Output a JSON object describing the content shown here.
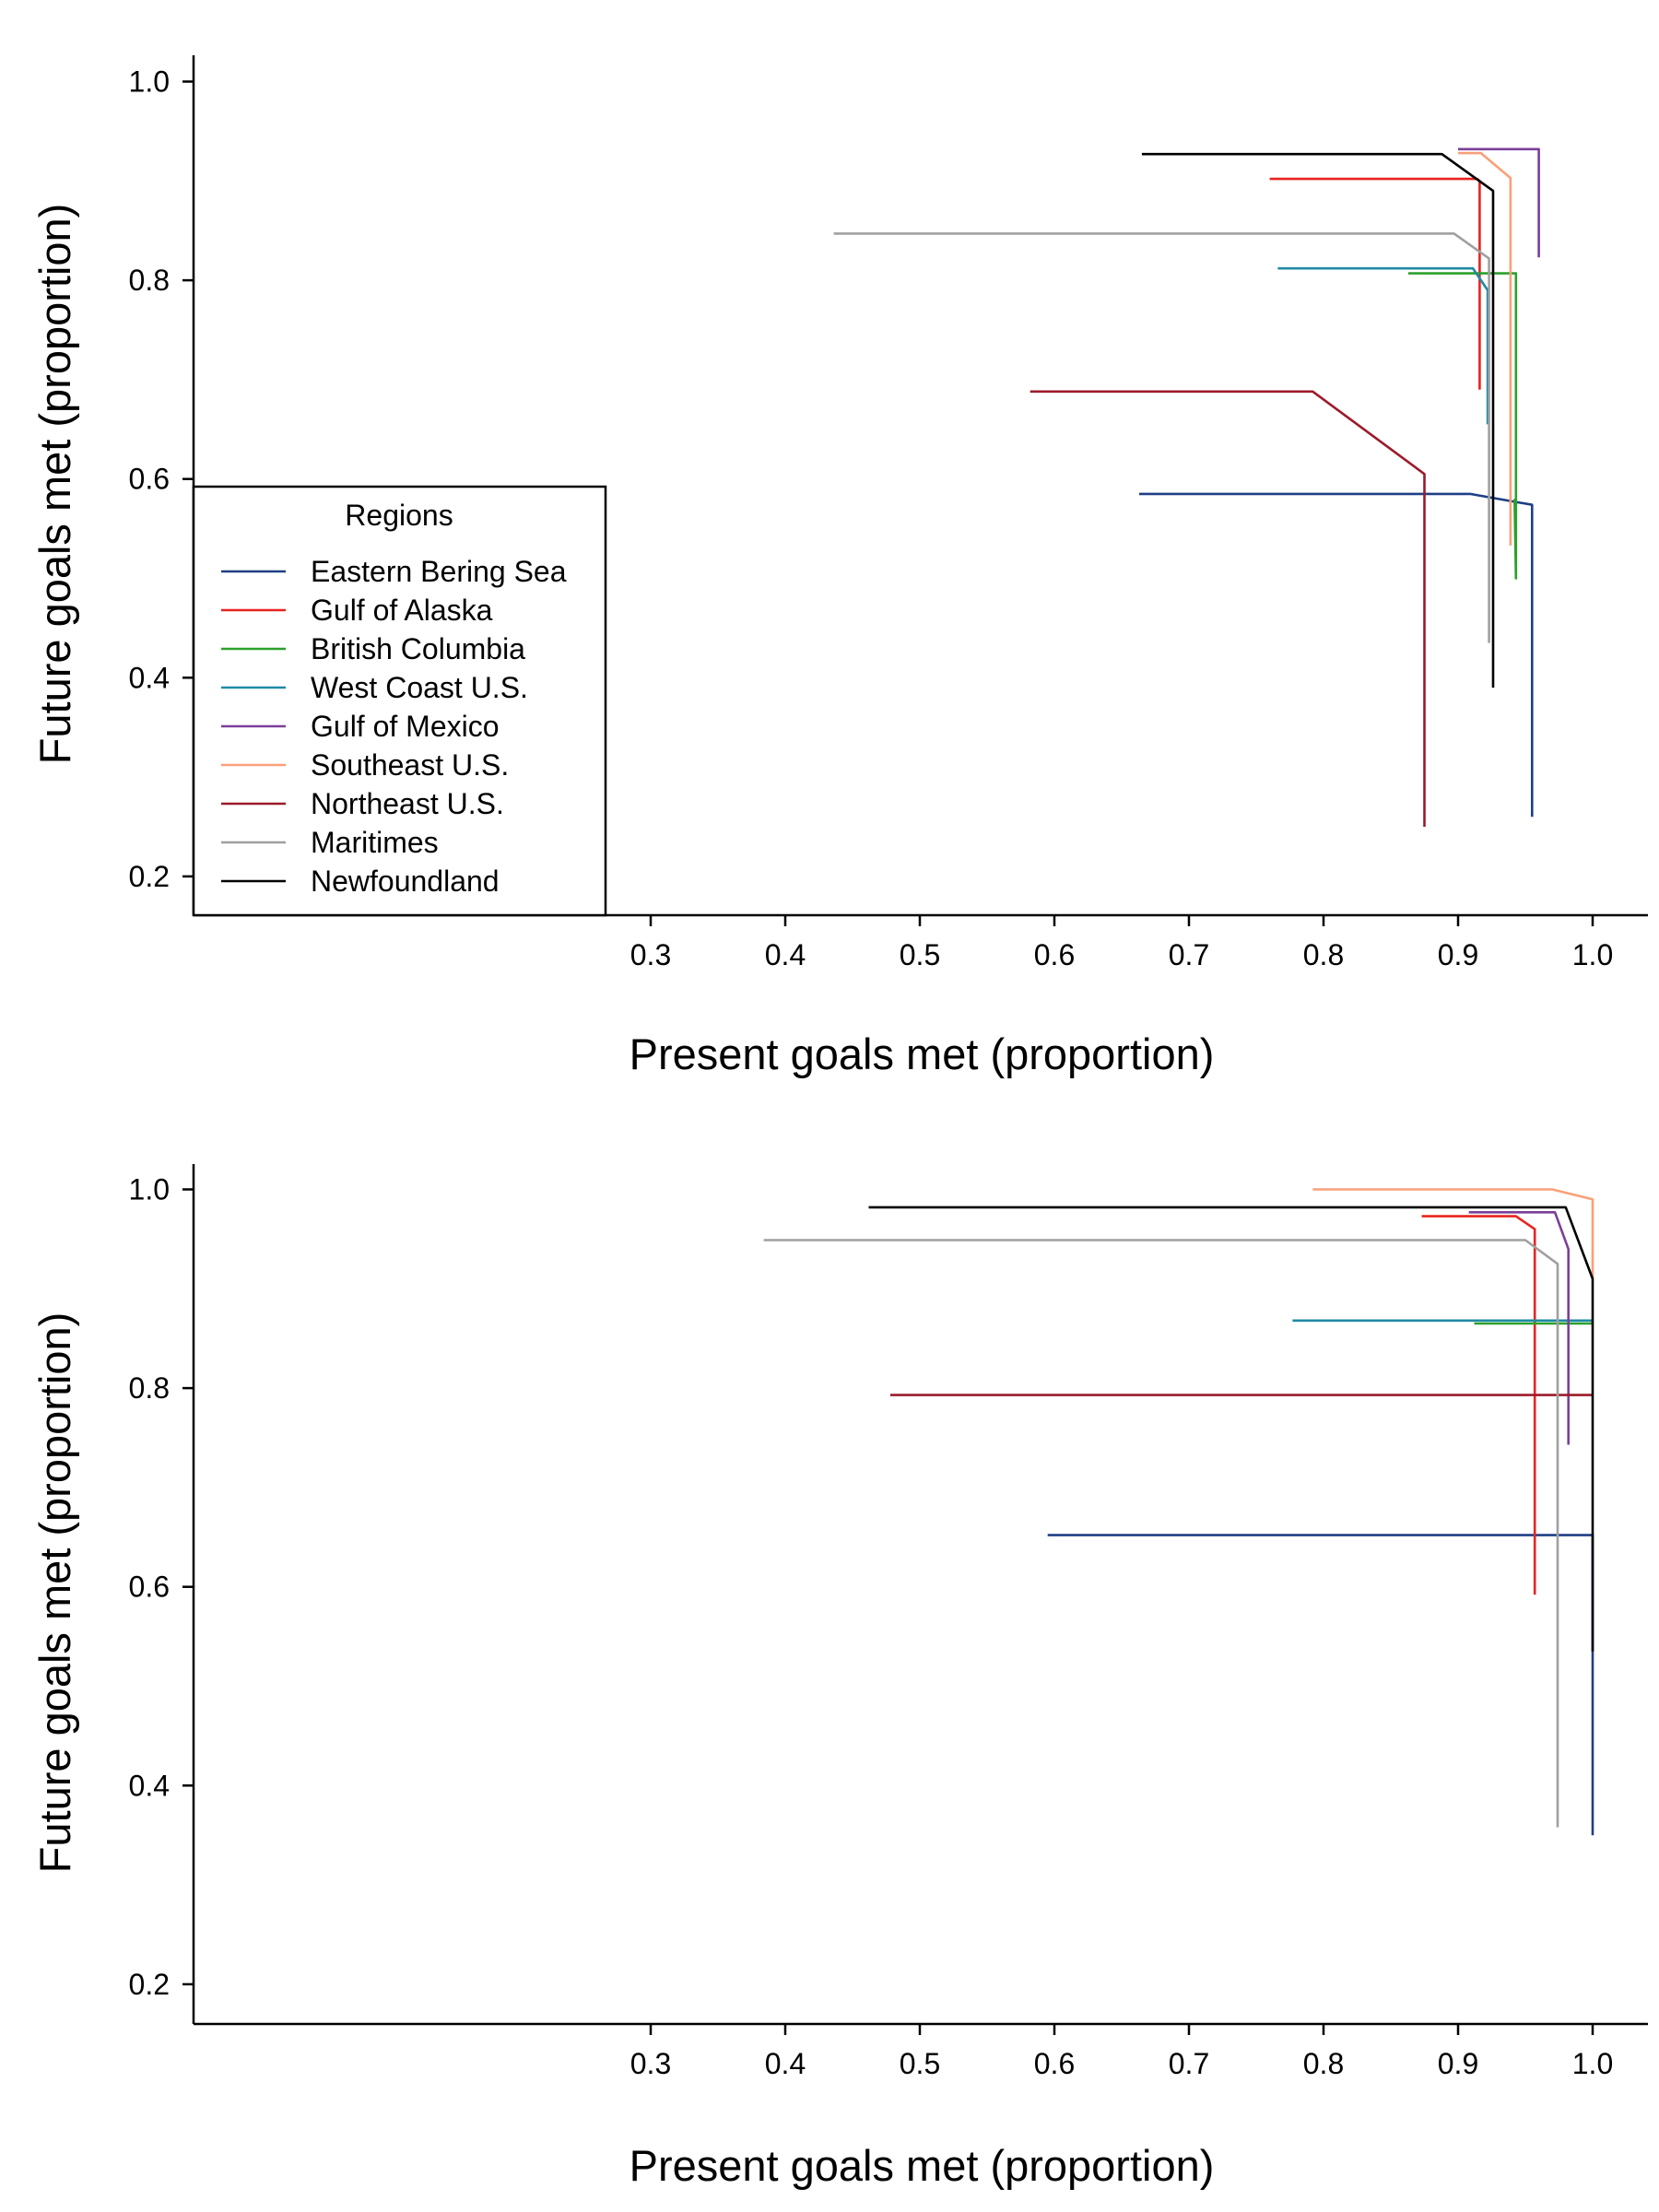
{
  "colors": {
    "Eastern Bering Sea": "#1f3f86",
    "Gulf of Alaska": "#e8231f",
    "British Columbia": "#2ca02c",
    "West Coast U.S.": "#1f8aa6",
    "Gulf of Mexico": "#7b3f9a",
    "Southeast U.S.": "#f9a07a",
    "Northeast U.S.": "#9b1b2b",
    "Maritimes": "#a0a0a0",
    "Newfoundland": "#000000"
  },
  "legend": {
    "title": "Regions",
    "entries": [
      "Eastern Bering Sea",
      "Gulf of Alaska",
      "British Columbia",
      "West Coast U.S.",
      "Gulf of Mexico",
      "Southeast U.S.",
      "Northeast U.S.",
      "Maritimes",
      "Newfoundland"
    ]
  },
  "chart_data": [
    {
      "type": "line",
      "xlabel": "Present goals met (proportion)",
      "ylabel": "Future goals met (proportion)",
      "xlim": [
        0.27,
        1.03
      ],
      "ylim": [
        0.17,
        1.04
      ],
      "xticks": [
        "0.3",
        "0.4",
        "0.5",
        "0.6",
        "0.7",
        "0.8",
        "0.9",
        "1.0"
      ],
      "yticks": [
        "0.2",
        "0.4",
        "0.6",
        "0.8",
        "1.0"
      ],
      "legend_position": "bottom-left",
      "series": [
        {
          "name": "Eastern Bering Sea",
          "x": [
            0.663,
            0.909,
            0.955,
            0.955
          ],
          "y": [
            0.585,
            0.585,
            0.574,
            0.26
          ]
        },
        {
          "name": "Gulf of Alaska",
          "x": [
            0.76,
            0.914,
            0.916,
            0.916
          ],
          "y": [
            0.902,
            0.902,
            0.9,
            0.69
          ]
        },
        {
          "name": "British Columbia",
          "x": [
            0.863,
            0.943,
            0.943,
            0.942
          ],
          "y": [
            0.807,
            0.807,
            0.5,
            0.58
          ]
        },
        {
          "name": "West Coast U.S.",
          "x": [
            0.766,
            0.911,
            0.922,
            0.922
          ],
          "y": [
            0.812,
            0.812,
            0.79,
            0.655
          ]
        },
        {
          "name": "Gulf of Mexico",
          "x": [
            0.9,
            0.96,
            0.96
          ],
          "y": [
            0.932,
            0.932,
            0.823
          ]
        },
        {
          "name": "Southeast U.S.",
          "x": [
            0.9,
            0.917,
            0.939,
            0.939
          ],
          "y": [
            0.928,
            0.928,
            0.903,
            0.533
          ]
        },
        {
          "name": "Northeast U.S.",
          "x": [
            0.582,
            0.792,
            0.875,
            0.875
          ],
          "y": [
            0.688,
            0.688,
            0.605,
            0.25
          ]
        },
        {
          "name": "Maritimes",
          "x": [
            0.436,
            0.897,
            0.923,
            0.923
          ],
          "y": [
            0.847,
            0.847,
            0.822,
            0.435
          ]
        },
        {
          "name": "Newfoundland",
          "x": [
            0.665,
            0.888,
            0.926,
            0.926
          ],
          "y": [
            0.927,
            0.927,
            0.89,
            0.39
          ]
        }
      ]
    },
    {
      "type": "line",
      "xlabel": "Present goals met (proportion)",
      "ylabel": "Future goals met (proportion)",
      "xlim": [
        0.27,
        1.03
      ],
      "ylim": [
        0.17,
        1.04
      ],
      "xticks": [
        "0.3",
        "0.4",
        "0.5",
        "0.6",
        "0.7",
        "0.8",
        "0.9",
        "1.0"
      ],
      "yticks": [
        "0.2",
        "0.4",
        "0.6",
        "0.8",
        "1.0"
      ],
      "series": [
        {
          "name": "Eastern Bering Sea",
          "x": [
            0.595,
            1.0,
            1.0
          ],
          "y": [
            0.652,
            0.652,
            0.35
          ]
        },
        {
          "name": "Gulf of Alaska",
          "x": [
            0.873,
            0.943,
            0.957,
            0.957
          ],
          "y": [
            0.973,
            0.973,
            0.96,
            0.592
          ]
        },
        {
          "name": "British Columbia",
          "x": [
            0.912,
            1.0
          ],
          "y": [
            0.865,
            0.865
          ]
        },
        {
          "name": "West Coast U.S.",
          "x": [
            0.777,
            1.0
          ],
          "y": [
            0.868,
            0.868
          ]
        },
        {
          "name": "Gulf of Mexico",
          "x": [
            0.908,
            0.972,
            0.982,
            0.982
          ],
          "y": [
            0.977,
            0.977,
            0.94,
            0.743
          ]
        },
        {
          "name": "Southeast U.S.",
          "x": [
            0.792,
            0.97,
            1.0,
            1.0
          ],
          "y": [
            1.0,
            1.0,
            0.99,
            0.91
          ]
        },
        {
          "name": "Northeast U.S.",
          "x": [
            0.478,
            1.0
          ],
          "y": [
            0.793,
            0.793
          ]
        },
        {
          "name": "Maritimes",
          "x": [
            0.384,
            0.95,
            0.974,
            0.974
          ],
          "y": [
            0.949,
            0.949,
            0.925,
            0.358
          ]
        },
        {
          "name": "Newfoundland",
          "x": [
            0.462,
            0.98,
            1.0,
            1.0
          ],
          "y": [
            0.982,
            0.982,
            0.91,
            0.535
          ]
        }
      ]
    }
  ]
}
